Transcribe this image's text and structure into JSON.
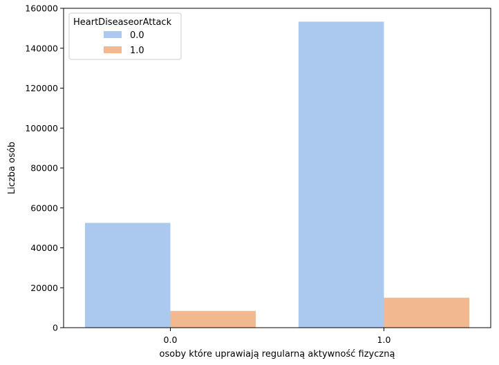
{
  "chart_data": {
    "type": "bar",
    "title": "",
    "xlabel": "osoby które uprawiają regularną aktywność fizyczną",
    "ylabel": "Liczba osób",
    "categories": [
      "0.0",
      "1.0"
    ],
    "series": [
      {
        "name": "0.0",
        "values": [
          52500,
          153300
        ]
      },
      {
        "name": "1.0",
        "values": [
          8400,
          15000
        ]
      }
    ],
    "ylim": [
      0,
      160000
    ],
    "yticks": [
      "0",
      "20000",
      "40000",
      "60000",
      "80000",
      "100000",
      "120000",
      "140000",
      "160000"
    ],
    "legend": {
      "title": "HeartDiseaseorAttack",
      "placement": "top-left"
    },
    "grid": false
  },
  "colors": {
    "series": [
      "#abc9ef",
      "#f2b88f"
    ],
    "axis": "#000000"
  }
}
